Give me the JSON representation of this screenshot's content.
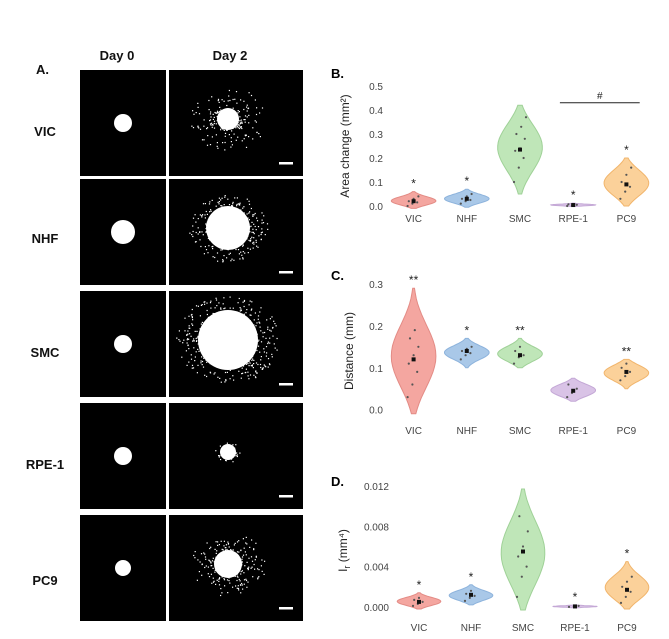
{
  "panel_a": {
    "label": "A.",
    "columns": [
      "Day 0",
      "Day 2"
    ],
    "rows": [
      "VIC",
      "NHF",
      "SMC",
      "RPE-1",
      "PC9"
    ]
  },
  "chart_data": [
    {
      "type": "violin",
      "panel_label": "B.",
      "categories": [
        "VIC",
        "NHF",
        "SMC",
        "RPE-1",
        "PC9"
      ],
      "ylabel": "Area change (mm²)",
      "ylim": [
        0,
        0.5
      ],
      "yticks": [
        "0.0",
        "0.1",
        "0.2",
        "0.3",
        "0.4",
        "0.5"
      ],
      "ytick_values": [
        0,
        0.1,
        0.2,
        0.3,
        0.4,
        0.5
      ],
      "colors": [
        "#f4a6a0",
        "#a9c8e8",
        "#bfe6b8",
        "#d9c3e6",
        "#fbd19a"
      ],
      "stroke_colors": [
        "#e38b85",
        "#8db3dc",
        "#9fd197",
        "#c4a8d6",
        "#f1b56c"
      ],
      "values": [
        [
          0.0,
          0.01,
          0.015,
          0.02,
          0.03,
          0.04
        ],
        [
          0.01,
          0.02,
          0.025,
          0.03,
          0.04,
          0.05
        ],
        [
          0.1,
          0.16,
          0.2,
          0.23,
          0.24,
          0.28,
          0.3,
          0.33,
          0.37
        ],
        [
          0.0,
          0.003,
          0.005,
          0.007
        ],
        [
          0.03,
          0.06,
          0.08,
          0.1,
          0.13,
          0.16
        ]
      ],
      "medians": [
        0.02,
        0.03,
        0.235,
        0.004,
        0.09
      ],
      "extent": [
        [
          -0.01,
          0.06
        ],
        [
          -0.005,
          0.07
        ],
        [
          0.05,
          0.42
        ],
        [
          -0.002,
          0.012
        ],
        [
          0.0,
          0.2
        ]
      ],
      "significance": [
        "*",
        "*",
        "",
        "*",
        "*"
      ],
      "bracket": {
        "from": 3,
        "to": 4,
        "label": "#",
        "y": 0.43
      }
    },
    {
      "type": "violin",
      "panel_label": "C.",
      "categories": [
        "VIC",
        "NHF",
        "SMC",
        "RPE-1",
        "PC9"
      ],
      "ylabel": "Distance (mm)",
      "ylim": [
        -0.02,
        0.3
      ],
      "yticks": [
        "0.0",
        "0.1",
        "0.2",
        "0.3"
      ],
      "ytick_values": [
        0,
        0.1,
        0.2,
        0.3
      ],
      "colors": [
        "#f4a6a0",
        "#a9c8e8",
        "#bfe6b8",
        "#d9c3e6",
        "#fbd19a"
      ],
      "stroke_colors": [
        "#e38b85",
        "#8db3dc",
        "#9fd197",
        "#c4a8d6",
        "#f1b56c"
      ],
      "values": [
        [
          0.03,
          0.06,
          0.09,
          0.11,
          0.13,
          0.15,
          0.17,
          0.19
        ],
        [
          0.12,
          0.13,
          0.135,
          0.14,
          0.145,
          0.15
        ],
        [
          0.11,
          0.125,
          0.13,
          0.14,
          0.15
        ],
        [
          0.03,
          0.04,
          0.05,
          0.06
        ],
        [
          0.07,
          0.08,
          0.09,
          0.1,
          0.11
        ]
      ],
      "medians": [
        0.12,
        0.14,
        0.13,
        0.045,
        0.09
      ],
      "extent": [
        [
          -0.01,
          0.29
        ],
        [
          0.1,
          0.17
        ],
        [
          0.1,
          0.17
        ],
        [
          0.02,
          0.075
        ],
        [
          0.05,
          0.12
        ]
      ],
      "significance": [
        "**",
        "*",
        "**",
        "",
        "**"
      ]
    },
    {
      "type": "violin",
      "panel_label": "D.",
      "categories": [
        "VIC",
        "NHF",
        "SMC",
        "RPE-1",
        "PC9"
      ],
      "ylabel": "I_r (mm⁴)",
      "ylabel_main": "I",
      "ylabel_sub": "r",
      "ylabel_rest": " (mm⁴)",
      "ylim": [
        -0.0008,
        0.012
      ],
      "yticks": [
        "0.000",
        "0.004",
        "0.008",
        "0.012"
      ],
      "ytick_values": [
        0,
        0.004,
        0.008,
        0.012
      ],
      "colors": [
        "#f4a6a0",
        "#a9c8e8",
        "#bfe6b8",
        "#d9c3e6",
        "#fbd19a"
      ],
      "stroke_colors": [
        "#e38b85",
        "#8db3dc",
        "#9fd197",
        "#c4a8d6",
        "#f1b56c"
      ],
      "values": [
        [
          0.0001,
          0.0003,
          0.0005,
          0.0007,
          0.0009
        ],
        [
          0.0006,
          0.0009,
          0.0011,
          0.0013,
          0.0016
        ],
        [
          0.001,
          0.003,
          0.004,
          0.005,
          0.006,
          0.0075,
          0.009
        ],
        [
          0.0,
          5e-05,
          0.0001
        ],
        [
          0.0004,
          0.001,
          0.0015,
          0.002,
          0.0025,
          0.003
        ]
      ],
      "medians": [
        0.0005,
        0.0012,
        0.0055,
        5e-05,
        0.0017
      ],
      "extent": [
        [
          -0.0002,
          0.0014
        ],
        [
          0.0002,
          0.0022
        ],
        [
          -0.0003,
          0.0117
        ],
        [
          -0.0001,
          0.0002
        ],
        [
          -0.0002,
          0.0045
        ]
      ],
      "significance": [
        "*",
        "*",
        "",
        "*",
        "*"
      ]
    }
  ]
}
